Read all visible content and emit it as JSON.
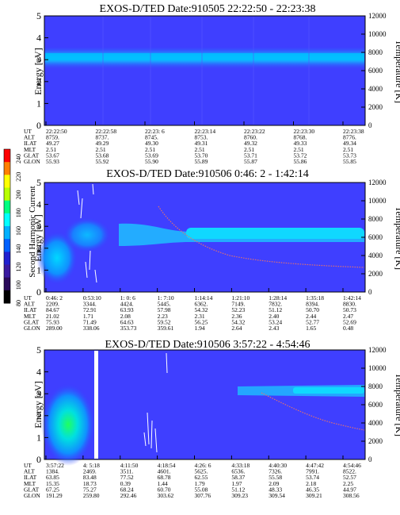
{
  "colorbar": {
    "label": "Second Harmonic Current",
    "ticks": [
      "240",
      "220",
      "200",
      "180",
      "160",
      "140",
      "120",
      "100",
      "80"
    ],
    "colors": [
      "#ff0000",
      "#ff7f00",
      "#ffff00",
      "#b8ff00",
      "#00ff80",
      "#00ffff",
      "#00b0ff",
      "#0060ff",
      "#2020d0",
      "#3a1aa0",
      "#2a0a5a",
      "#000000"
    ]
  },
  "chart_data": [
    {
      "type": "heatmap",
      "title": "EXOS-D/TED  Date:910505  22:22:50 - 22:23:38",
      "ylabel": "Energy [eV]",
      "y2label": "Temperature [K]",
      "ylim": [
        0,
        5
      ],
      "y2lim": [
        0,
        12000
      ],
      "yticks": [
        "0",
        "1",
        "2",
        "3",
        "4",
        "5"
      ],
      "y2ticks": [
        "0",
        "2000",
        "4000",
        "6000",
        "8000",
        "10000",
        "12000"
      ],
      "row_labels": [
        "UT",
        "ALT",
        "ILAT",
        "MLT",
        "GLAT",
        "GLON"
      ],
      "columns": [
        [
          "22:22:50",
          "8759.",
          "49.27",
          "2.51",
          "53.67",
          "55.93"
        ],
        [
          "22:22:58",
          "8737.",
          "49.29",
          "2.51",
          "53.68",
          "55.92"
        ],
        [
          "22:23: 6",
          "8745.",
          "49.30",
          "2.51",
          "53.69",
          "55.90"
        ],
        [
          "22:23:14",
          "8753.",
          "49.31",
          "2.51",
          "53.70",
          "55.89"
        ],
        [
          "22:23:22",
          "8760.",
          "49.32",
          "2.51",
          "53.71",
          "55.87"
        ],
        [
          "22:23:30",
          "8768.",
          "49.33",
          "2.51",
          "53.72",
          "55.86"
        ],
        [
          "22:23:38",
          "8776.",
          "49.34",
          "2.51",
          "53.73",
          "55.85"
        ]
      ]
    },
    {
      "type": "heatmap",
      "title": "EXOS-D/TED  Date:910506  0:46: 2 - 1:42:14",
      "ylabel": "Energy [eV]",
      "y2label": "Temperature [K]",
      "ylim": [
        0,
        5
      ],
      "y2lim": [
        0,
        12000
      ],
      "yticks": [
        "0",
        "1",
        "2",
        "3",
        "4",
        "5"
      ],
      "y2ticks": [
        "0",
        "2000",
        "4000",
        "6000",
        "8000",
        "10000",
        "12000"
      ],
      "row_labels": [
        "UT",
        "ALT",
        "ILAT",
        "MLT",
        "GLAT",
        "GLON"
      ],
      "columns": [
        [
          "0:46: 2",
          "2209.",
          "84.67",
          "21.02",
          "75.93",
          "289.00"
        ],
        [
          "0:53:10",
          "3344.",
          "72.91",
          "1.71",
          "71.49",
          "338.06"
        ],
        [
          "1: 0: 6",
          "4424.",
          "63.93",
          "2.08",
          "64.63",
          "353.73"
        ],
        [
          "1: 7:10",
          "5445.",
          "57.98",
          "2.23",
          "59.52",
          "359.61"
        ],
        [
          "1:14:14",
          "6362.",
          "54.32",
          "2.31",
          "56.25",
          "1.94"
        ],
        [
          "1:21:10",
          "7149.",
          "52.23",
          "2.36",
          "54.32",
          "2.64"
        ],
        [
          "1:28:14",
          "7832.",
          "51.12",
          "2.40",
          "53.24",
          "2.43"
        ],
        [
          "1:35:18",
          "8394.",
          "50.70",
          "2.44",
          "52.77",
          "1.65"
        ],
        [
          "1:42:14",
          "8830.",
          "50.73",
          "2.47",
          "52.69",
          "0.48"
        ]
      ]
    },
    {
      "type": "heatmap",
      "title": "EXOS-D/TED  Date:910506  3:57:22 - 4:54:46",
      "ylabel": "Energy [eV]",
      "y2label": "Temperature [K]",
      "ylim": [
        0,
        5
      ],
      "y2lim": [
        0,
        12000
      ],
      "yticks": [
        "0",
        "1",
        "2",
        "3",
        "4",
        "5"
      ],
      "y2ticks": [
        "0",
        "2000",
        "4000",
        "6000",
        "8000",
        "10000",
        "12000"
      ],
      "row_labels": [
        "UT",
        "ALT",
        "ILAT",
        "MLT",
        "GLAT",
        "GLON"
      ],
      "columns": [
        [
          "3:57:22",
          "1384.",
          "63.85",
          "15.35",
          "67.25",
          "191.29"
        ],
        [
          "4: 5:18",
          "2469.",
          "83.48",
          "18.73",
          "75.27",
          "259.80"
        ],
        [
          "4:11:50",
          "3511.",
          "77.52",
          "0.39",
          "68.24",
          "292.46"
        ],
        [
          "4:18:54",
          "4601.",
          "68.78",
          "1.44",
          "60.70",
          "303.62"
        ],
        [
          "4:26: 6",
          "5625.",
          "62.55",
          "1.79",
          "55.08",
          "307.76"
        ],
        [
          "4:33:18",
          "6536.",
          "58.37",
          "1.97",
          "51.12",
          "309.23"
        ],
        [
          "4:40:30",
          "7326.",
          "55.58",
          "2.09",
          "48.33",
          "309.54"
        ],
        [
          "4:47:42",
          "7991.",
          "53.74",
          "2.18",
          "46.35",
          "309.21"
        ],
        [
          "4:54:46",
          "8522.",
          "52.57",
          "2.25",
          "44.97",
          "308.56"
        ]
      ]
    }
  ]
}
